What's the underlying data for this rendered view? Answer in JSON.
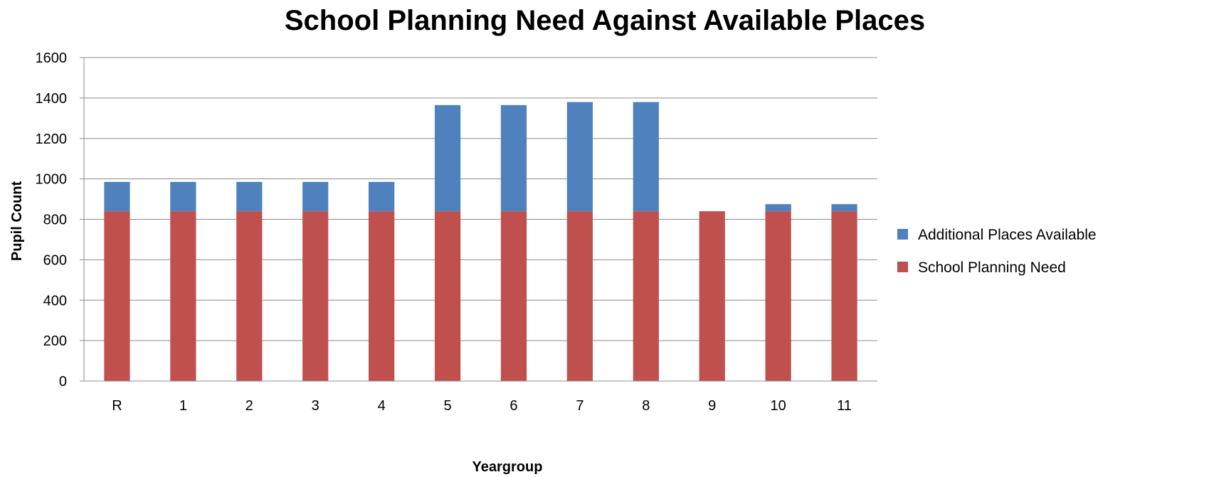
{
  "chart_data": {
    "type": "bar",
    "stacked": true,
    "title": "School Planning Need Against Available Places",
    "xlabel": "Yeargroup",
    "ylabel": "Pupil Count",
    "ylim": [
      0,
      1600
    ],
    "yticks": [
      "0",
      "200",
      "400",
      "600",
      "800",
      "1000",
      "1200",
      "1400",
      "1600"
    ],
    "grid": true,
    "legend_position": "right",
    "categories": [
      "R",
      "1",
      "2",
      "3",
      "4",
      "5",
      "6",
      "7",
      "8",
      "9",
      "10",
      "11"
    ],
    "series": [
      {
        "name": "School Planning Need",
        "color": "#c0504d",
        "values": [
          840,
          840,
          840,
          840,
          840,
          840,
          840,
          840,
          840,
          840,
          840,
          840
        ]
      },
      {
        "name": "Additional Places Available",
        "color": "#4f81bd",
        "values": [
          145,
          145,
          145,
          145,
          145,
          525,
          525,
          540,
          540,
          0,
          35,
          35
        ]
      }
    ],
    "legend_order": [
      "Additional Places Available",
      "School Planning Need"
    ]
  }
}
